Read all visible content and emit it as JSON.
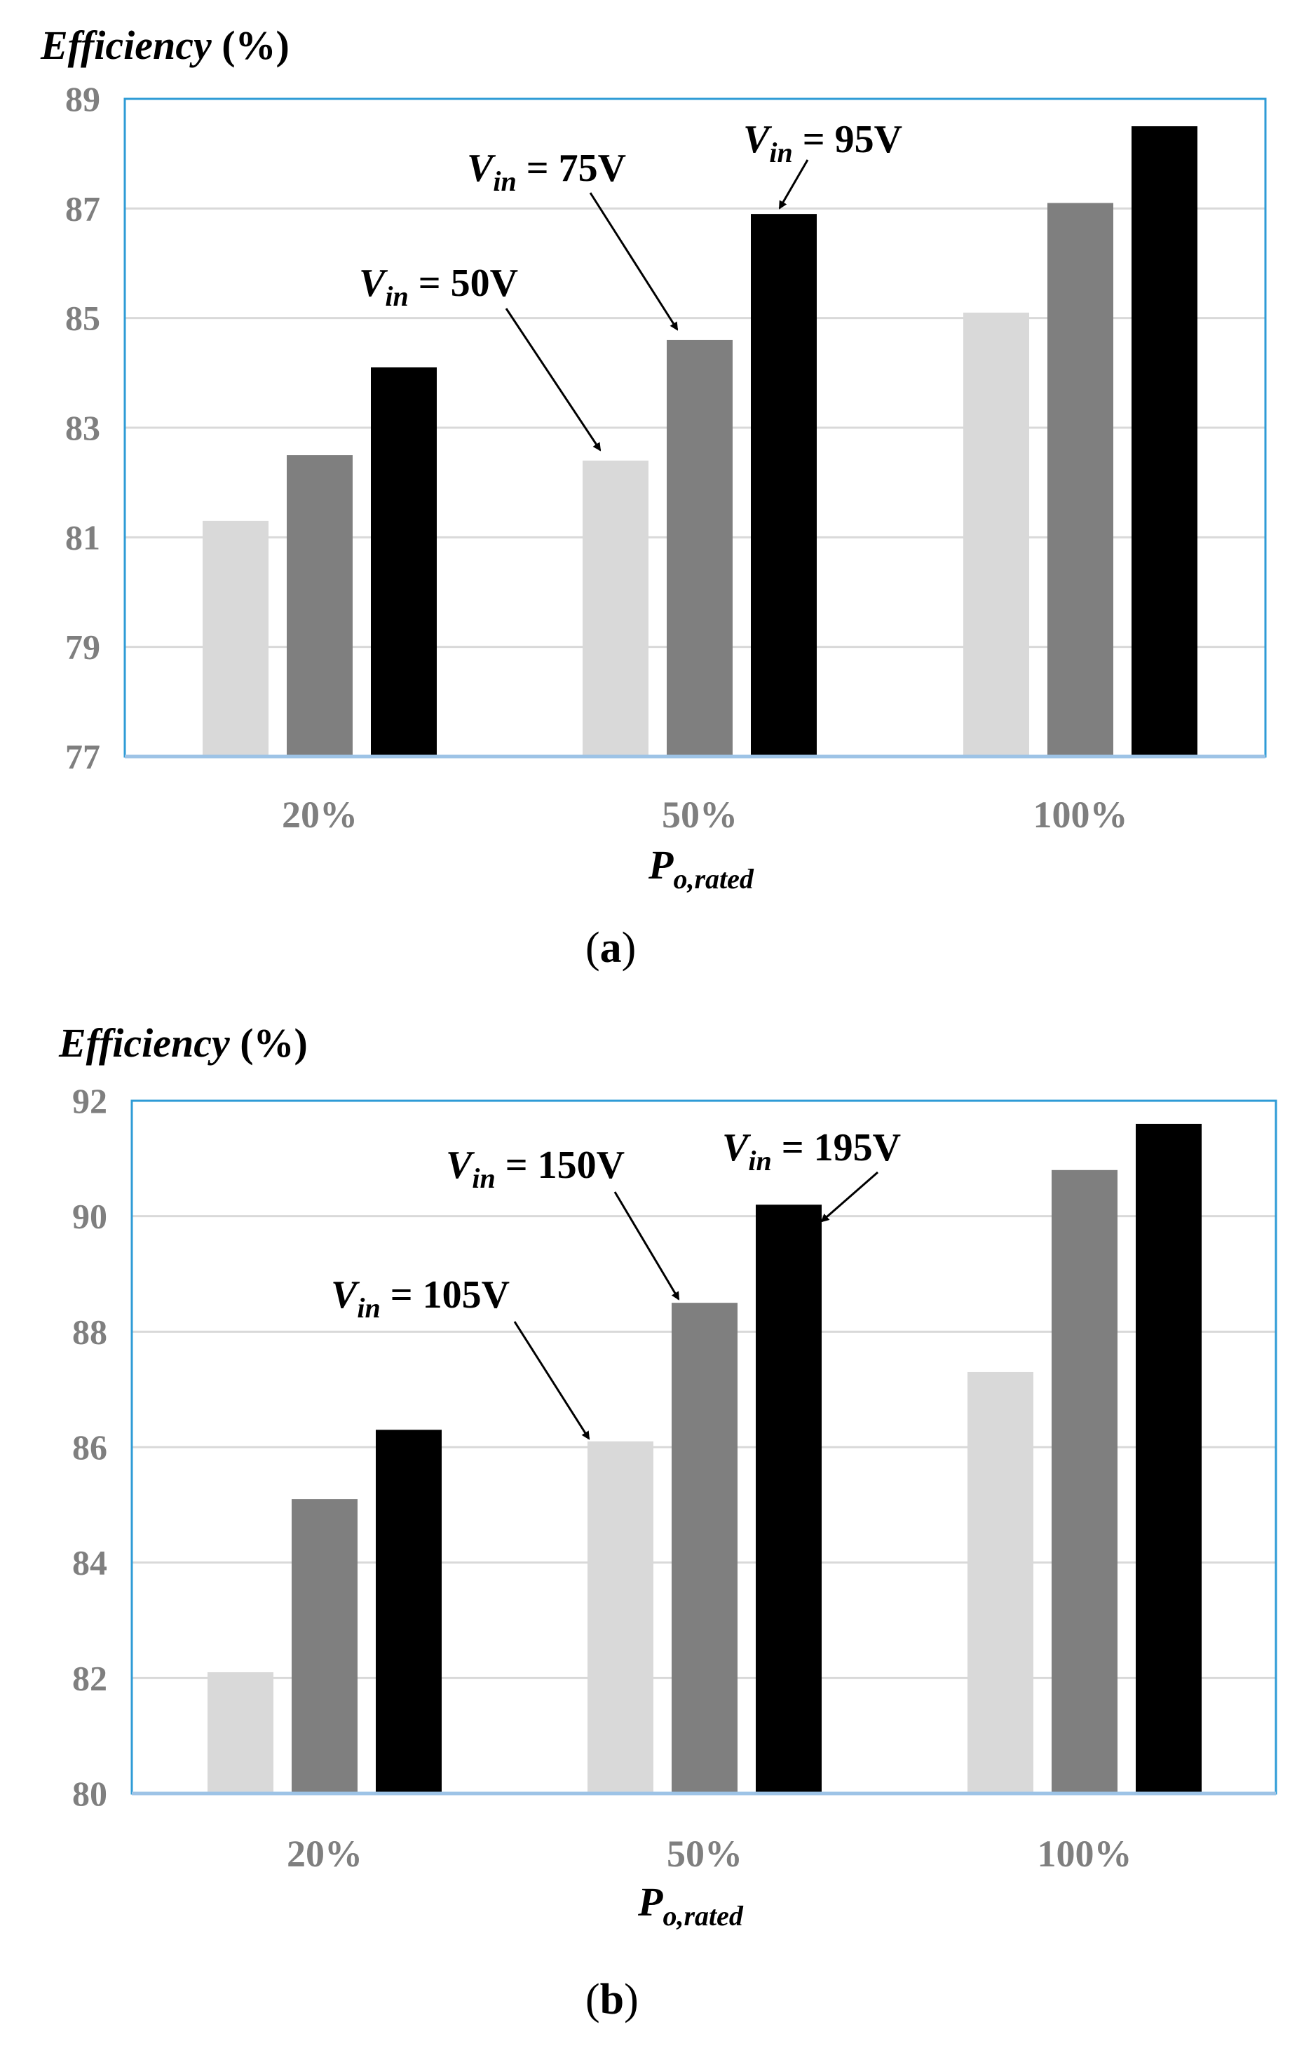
{
  "chart_data": [
    {
      "id": "a",
      "type": "bar",
      "caption": {
        "open": "(",
        "letter": "a",
        "close": ")"
      },
      "ylabel": {
        "main": "Efficiency",
        "unit": " (%)"
      },
      "xlabel": {
        "main": "P",
        "sub": "o,rated"
      },
      "categories": [
        "20%",
        "50%",
        "100%"
      ],
      "ylim": [
        77,
        89
      ],
      "yticks": [
        77,
        79,
        81,
        83,
        85,
        87,
        89
      ],
      "grid": true,
      "series": [
        {
          "name": "Vin = 50V",
          "color": "#d9d9d9",
          "values": [
            81.3,
            82.4,
            85.1
          ]
        },
        {
          "name": "Vin = 75V",
          "color": "#7f7f7f",
          "values": [
            82.5,
            84.6,
            87.1
          ]
        },
        {
          "name": "Vin = 95V",
          "color": "#000000",
          "values": [
            84.1,
            86.9,
            88.5
          ]
        }
      ],
      "annotations": [
        {
          "v": "V",
          "sub": "in",
          "rest": " = 50V",
          "series": 0,
          "category": 1
        },
        {
          "v": "V",
          "sub": "in",
          "rest": " = 75V",
          "series": 1,
          "category": 1
        },
        {
          "v": "V",
          "sub": "in",
          "rest": " = 95V",
          "series": 2,
          "category": 1
        }
      ]
    },
    {
      "id": "b",
      "type": "bar",
      "caption": {
        "open": "(",
        "letter": "b",
        "close": ")"
      },
      "ylabel": {
        "main": "Efficiency",
        "unit": " (%)"
      },
      "xlabel": {
        "main": "P",
        "sub": "o,rated"
      },
      "categories": [
        "20%",
        "50%",
        "100%"
      ],
      "ylim": [
        80,
        92
      ],
      "yticks": [
        80,
        82,
        84,
        86,
        88,
        90,
        92
      ],
      "grid": true,
      "series": [
        {
          "name": "Vin = 105V",
          "color": "#d9d9d9",
          "values": [
            82.1,
            86.1,
            87.3
          ]
        },
        {
          "name": "Vin = 150V",
          "color": "#7f7f7f",
          "values": [
            85.1,
            88.5,
            90.8
          ]
        },
        {
          "name": "Vin = 195V",
          "color": "#000000",
          "values": [
            86.3,
            90.2,
            91.6
          ]
        }
      ],
      "annotations": [
        {
          "v": "V",
          "sub": "in",
          "rest": " = 105V",
          "series": 0,
          "category": 1
        },
        {
          "v": "V",
          "sub": "in",
          "rest": " = 150V",
          "series": 1,
          "category": 1
        },
        {
          "v": "V",
          "sub": "in",
          "rest": " = 195V",
          "series": 2,
          "category": 1
        }
      ],
      "colors": {
        "frame": "#2e9bd6",
        "grid": "#d9d9d9",
        "tick_text": "#7f7f7f"
      }
    }
  ]
}
